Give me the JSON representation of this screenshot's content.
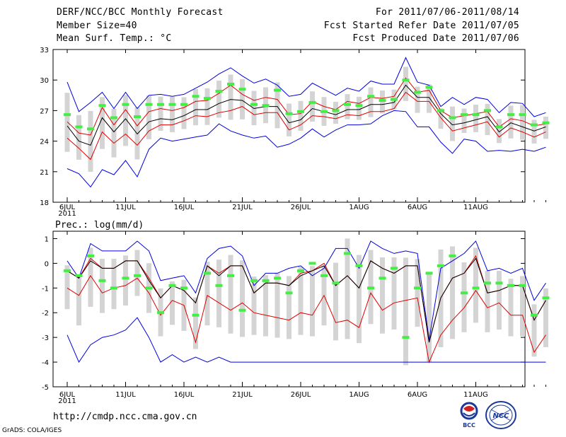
{
  "header": {
    "title": "DERF/NCC/BCC Monthly Forecast",
    "member_size": "Member Size=40",
    "variable": "Mean Surf. Temp.: °C",
    "period": "For 2011/07/06-2011/08/14",
    "fcst_started": "Fcst Started Refer Date 2011/07/05",
    "fcst_produced": "Fcst Produced Date 2011/07/06"
  },
  "footer": {
    "url": "http://cmdp.ncc.cma.gov.cn",
    "credit": "GrADS: COLA/IGES",
    "logo_bcc": "BCC",
    "logo_ncc": "NCC"
  },
  "colors": {
    "max_min": "#0000e0",
    "spread": "#e00000",
    "mean": "#000000",
    "observed_marker": "#44ee44",
    "range_bar": "#d4d4d4"
  },
  "chart_data": [
    {
      "type": "line",
      "title": "Mean Surf. Temp.: °C",
      "ylim": [
        18,
        33
      ],
      "yticks": [
        18,
        21,
        24,
        27,
        30,
        33
      ],
      "ytick_labels": [
        "18",
        "21",
        "24",
        "27",
        "30",
        "33"
      ],
      "xtick_positions": [
        0,
        5,
        10,
        15,
        20,
        25,
        30,
        35
      ],
      "xtick_labels": [
        "6JUL",
        "11JUL",
        "16JUL",
        "21JUL",
        "26JUL",
        "1AUG",
        "6AUG",
        "11AUG"
      ],
      "year_label": "2011",
      "series": [
        {
          "name": "max",
          "values": [
            29.8,
            26.9,
            27.8,
            28.8,
            27.2,
            28.8,
            27.2,
            28.5,
            28.6,
            28.4,
            28.6,
            29.2,
            29.8,
            30.6,
            31.2,
            30.4,
            29.7,
            30.1,
            29.5,
            28.4,
            28.6,
            29.7,
            29.1,
            28.5,
            29.2,
            28.9,
            29.9,
            29.6,
            29.6,
            32.2,
            29.8,
            29.5,
            27.4,
            28.3,
            27.6,
            28.3,
            28.1,
            26.8,
            27.8,
            27.7,
            26.4,
            26.8
          ]
        },
        {
          "name": "upper",
          "values": [
            25.9,
            24.8,
            24.6,
            27.3,
            25.6,
            27.1,
            25.5,
            26.9,
            27.2,
            27.0,
            27.3,
            27.9,
            28.0,
            28.7,
            29.5,
            28.6,
            28.0,
            28.3,
            28.1,
            26.6,
            26.7,
            27.9,
            27.4,
            27.1,
            27.9,
            27.7,
            28.3,
            28.2,
            28.4,
            30.2,
            28.8,
            29.0,
            27.0,
            26.3,
            26.5,
            26.7,
            26.9,
            25.4,
            26.2,
            26.0,
            25.5,
            25.7
          ]
        },
        {
          "name": "mean",
          "values": [
            25.5,
            24.0,
            23.6,
            26.3,
            24.9,
            26.2,
            24.7,
            25.9,
            26.2,
            26.1,
            26.5,
            27.1,
            27.1,
            27.7,
            28.1,
            28.0,
            27.2,
            27.4,
            27.4,
            25.8,
            26.1,
            27.2,
            26.9,
            26.6,
            27.1,
            27.1,
            27.6,
            27.6,
            27.8,
            29.5,
            28.3,
            28.3,
            26.7,
            25.6,
            25.8,
            26.1,
            26.4,
            24.9,
            25.8,
            25.4,
            25.0,
            25.4
          ]
        },
        {
          "name": "lower",
          "values": [
            24.3,
            23.3,
            22.2,
            24.9,
            23.8,
            24.7,
            23.6,
            25.0,
            25.6,
            25.6,
            26.0,
            26.5,
            26.4,
            26.8,
            27.0,
            27.4,
            26.6,
            26.8,
            26.8,
            25.1,
            25.6,
            26.5,
            26.4,
            26.2,
            26.6,
            26.5,
            26.9,
            26.9,
            27.2,
            28.8,
            27.9,
            27.9,
            26.3,
            25.0,
            25.3,
            25.6,
            25.9,
            24.4,
            25.3,
            24.9,
            24.4,
            24.9
          ]
        },
        {
          "name": "min",
          "values": [
            21.3,
            20.8,
            19.5,
            21.2,
            20.7,
            22.1,
            20.5,
            23.2,
            24.3,
            24.0,
            24.2,
            24.4,
            24.6,
            25.7,
            25.0,
            24.6,
            24.3,
            24.5,
            23.4,
            23.7,
            24.3,
            25.2,
            24.4,
            25.1,
            25.6,
            25.6,
            25.7,
            26.5,
            27.0,
            26.9,
            25.4,
            25.4,
            23.9,
            22.8,
            24.2,
            24.0,
            23.0,
            23.1,
            23.0,
            23.2,
            23.0,
            23.4
          ]
        },
        {
          "name": "observed",
          "values": [
            26.6,
            25.4,
            25.2,
            27.5,
            26.3,
            27.6,
            26.4,
            27.6,
            27.6,
            27.6,
            27.6,
            28.4,
            28.2,
            28.9,
            29.6,
            29.1,
            27.6,
            27.5,
            29.0,
            26.7,
            26.9,
            27.8,
            26.9,
            27.0,
            27.6,
            27.5,
            28.4,
            28.0,
            28.1,
            30.0,
            28.8,
            29.3,
            27.0,
            26.3,
            26.6,
            26.6,
            27.0,
            25.4,
            26.6,
            26.6,
            25.6,
            25.8
          ]
        }
      ]
    },
    {
      "type": "line",
      "title": "Prec.: log(mm/d)",
      "ylim": [
        -5,
        1.3
      ],
      "yticks": [
        -5,
        -4,
        -3,
        -2,
        -1,
        0,
        1
      ],
      "ytick_labels": [
        "-5",
        "-4",
        "-3",
        "-2",
        "-1",
        "0",
        "1"
      ],
      "xtick_positions": [
        0,
        5,
        10,
        15,
        20,
        25,
        30,
        35
      ],
      "xtick_labels": [
        "6JUL",
        "11JUL",
        "16JUL",
        "21JUL",
        "26JUL",
        "1AUG",
        "6AUG",
        "11AUG"
      ],
      "year_label": "2011",
      "series": [
        {
          "name": "max",
          "values": [
            0.1,
            -0.6,
            0.8,
            0.5,
            0.5,
            0.5,
            0.9,
            0.5,
            -0.7,
            -0.6,
            -0.5,
            -1.2,
            0.2,
            0.6,
            0.7,
            0.3,
            -0.9,
            -0.4,
            -0.4,
            -0.2,
            -0.1,
            -0.5,
            -0.2,
            0.6,
            0.6,
            -0.2,
            0.9,
            0.6,
            0.4,
            0.5,
            0.4,
            -3.1,
            -0.2,
            0.1,
            0.4,
            0.9,
            -0.3,
            -0.2,
            -0.4,
            -0.2,
            -1.5,
            -0.8
          ]
        },
        {
          "name": "upper",
          "values": [
            -0.3,
            -0.6,
            0.2,
            -0.2,
            -0.2,
            0.1,
            0.1,
            -0.6,
            -1.4,
            -0.9,
            -1.1,
            -1.6,
            -0.1,
            -0.4,
            -0.1,
            -0.1,
            -1.2,
            -0.8,
            -0.8,
            -0.9,
            -0.4,
            -0.3,
            0.0,
            -0.9,
            -0.5,
            -1.0,
            0.1,
            -0.2,
            -0.4,
            -0.1,
            -0.1,
            -3.2,
            -1.4,
            -0.6,
            -0.4,
            0.3,
            -1.2,
            -1.1,
            -0.9,
            -0.9,
            -2.3,
            -1.5
          ]
        },
        {
          "name": "mean",
          "values": [
            -0.3,
            -0.6,
            0.1,
            -0.2,
            -0.2,
            0.1,
            0.1,
            -0.7,
            -1.4,
            -0.9,
            -1.1,
            -1.6,
            -0.1,
            -0.5,
            -0.1,
            -0.1,
            -1.2,
            -0.8,
            -0.8,
            -0.9,
            -0.5,
            -0.3,
            -0.1,
            -0.9,
            -0.5,
            -1.0,
            0.1,
            -0.2,
            -0.4,
            -0.1,
            -0.1,
            -3.2,
            -1.4,
            -0.6,
            -0.4,
            0.2,
            -1.2,
            -1.1,
            -0.9,
            -0.9,
            -2.3,
            -1.5
          ]
        },
        {
          "name": "lower",
          "values": [
            -1.0,
            -1.3,
            -0.5,
            -1.2,
            -1.0,
            -0.9,
            -0.6,
            -1.2,
            -2.1,
            -1.5,
            -1.7,
            -3.2,
            -1.3,
            -1.6,
            -1.9,
            -1.6,
            -2.0,
            -2.1,
            -2.2,
            -2.3,
            -2.0,
            -2.1,
            -1.3,
            -2.4,
            -2.3,
            -2.6,
            -1.2,
            -1.9,
            -1.6,
            -1.5,
            -1.4,
            -4.0,
            -2.9,
            -2.3,
            -1.8,
            -1.1,
            -1.8,
            -1.6,
            -2.1,
            -2.1,
            -3.6,
            -2.9
          ]
        },
        {
          "name": "min",
          "values": [
            -2.9,
            -4.0,
            -3.3,
            -3.0,
            -2.9,
            -2.7,
            -2.2,
            -3.0,
            -4.0,
            -3.7,
            -4.0,
            -3.8,
            -4.0,
            -3.8,
            -4.0,
            -4.0,
            -4.0,
            -4.0,
            -4.0,
            -4.0,
            -4.0,
            -4.0,
            -4.0,
            -4.0,
            -4.0,
            -4.0,
            -4.0,
            -4.0,
            -4.0,
            -4.0,
            -4.0,
            -4.0,
            -4.0,
            -4.0,
            -4.0,
            -4.0,
            -4.0,
            -4.0,
            -4.0,
            -4.0,
            -4.0,
            -4.0
          ]
        },
        {
          "name": "observed",
          "values": [
            -0.3,
            -0.5,
            0.3,
            -0.7,
            -1.0,
            -0.6,
            -0.5,
            -1.0,
            -2.0,
            -0.9,
            -1.0,
            -2.1,
            -0.4,
            -0.9,
            -0.5,
            -1.9,
            -0.7,
            -0.7,
            -0.6,
            -1.2,
            -0.3,
            0.0,
            -0.5,
            -0.8,
            0.4,
            -0.1,
            -1.0,
            -0.6,
            -0.2,
            -3.0,
            -1.0,
            -0.4,
            -0.1,
            0.3,
            -1.2,
            -1.0,
            -0.8,
            -0.8,
            -0.9,
            -0.9,
            -2.1,
            -1.4
          ]
        }
      ]
    }
  ]
}
